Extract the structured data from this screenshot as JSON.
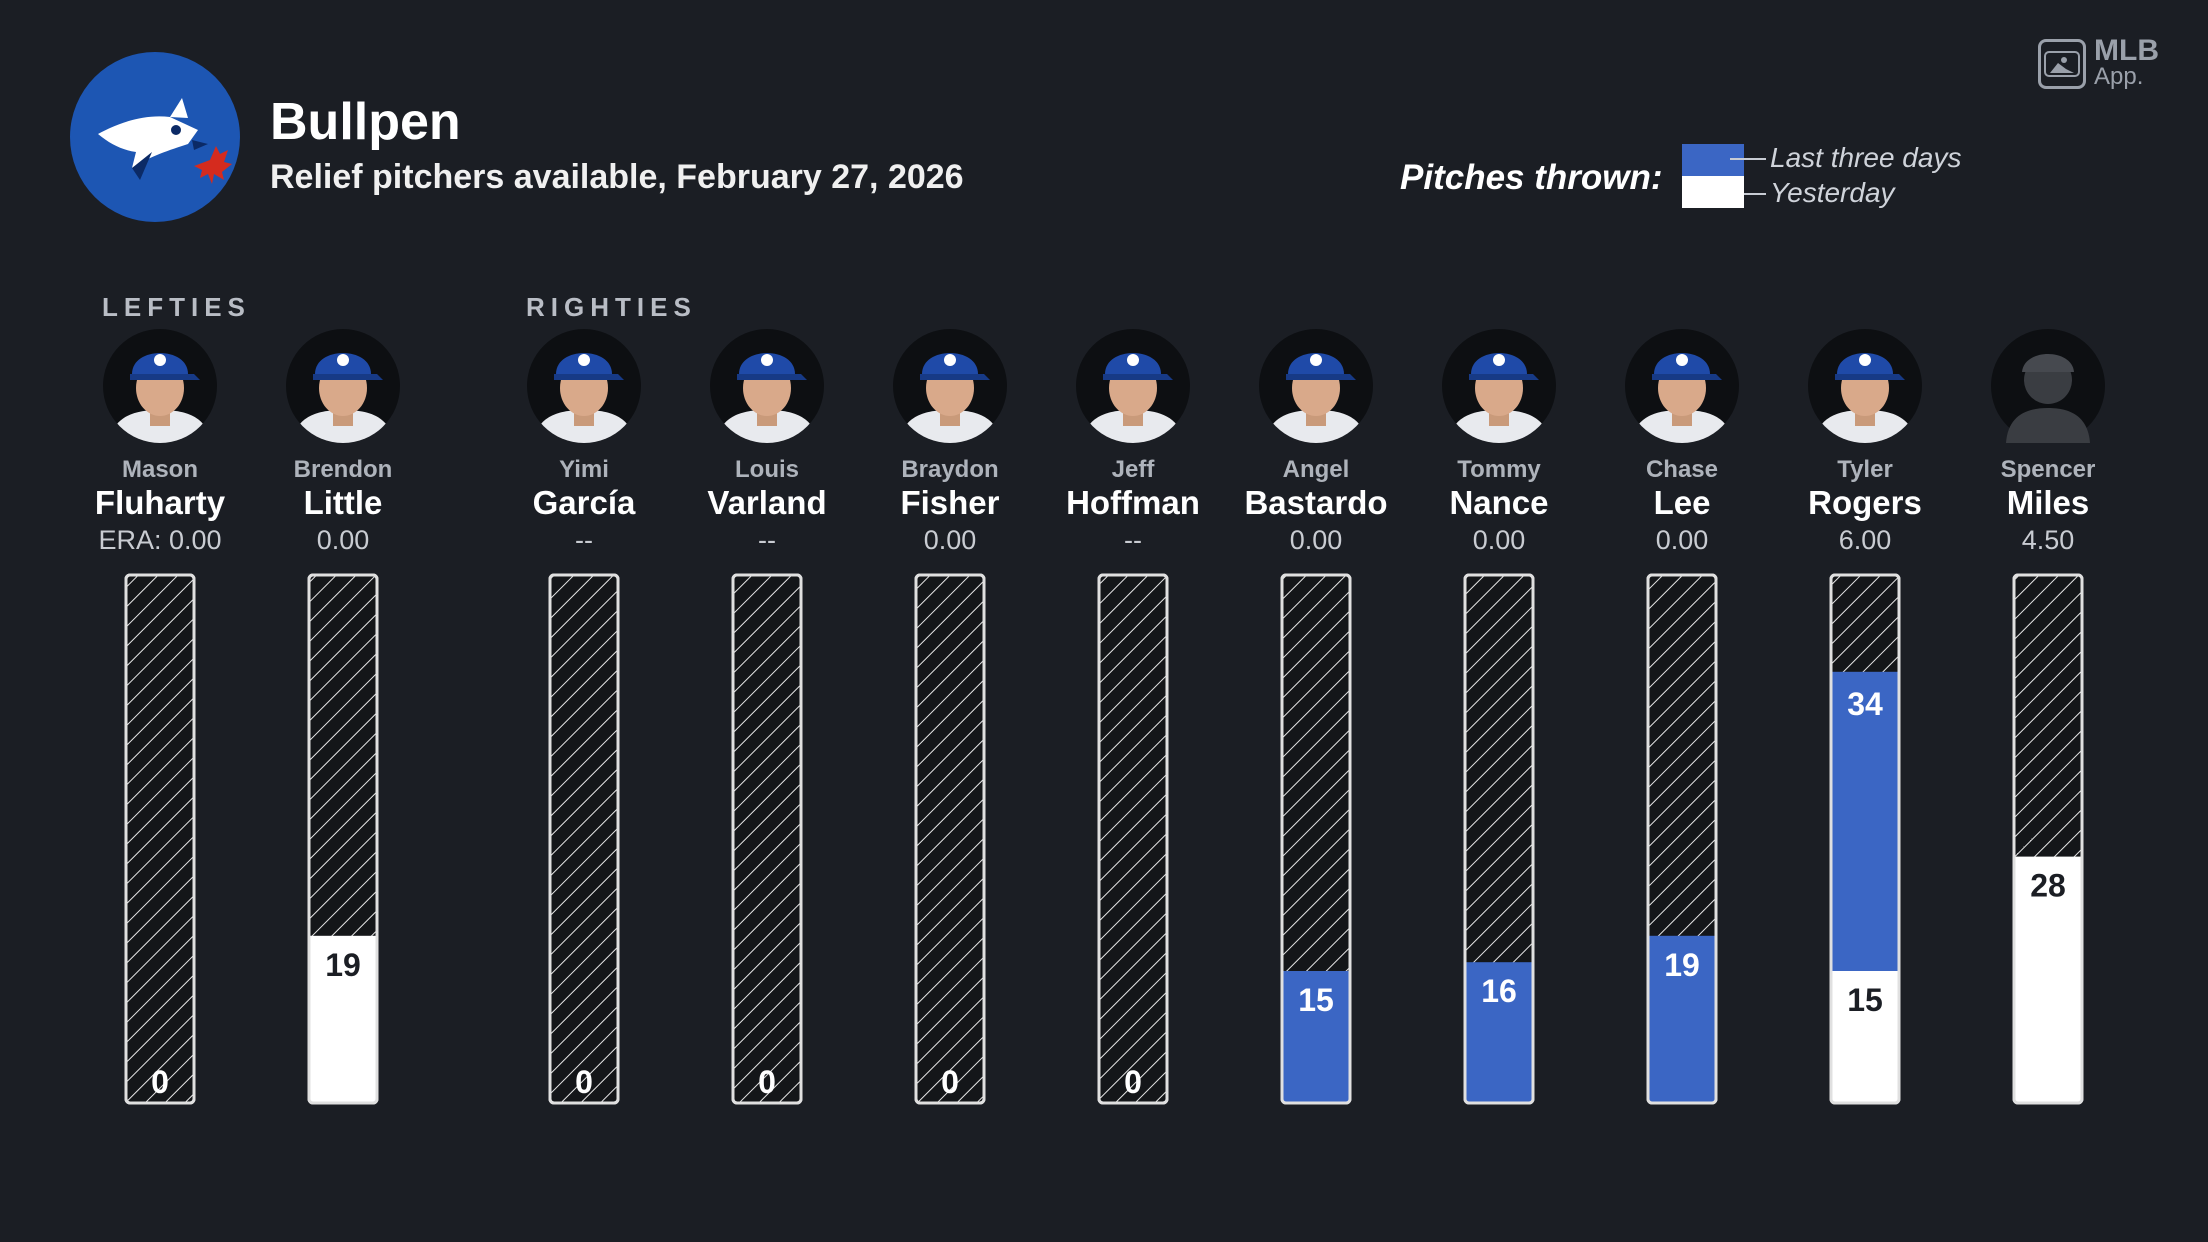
{
  "header": {
    "title": "Bullpen",
    "subtitle": "Relief pitchers available, February 27, 2026"
  },
  "brand": {
    "line1": "MLB",
    "line2": "App."
  },
  "legend": {
    "label": "Pitches thrown:",
    "last_three_days": "Last three days",
    "yesterday": "Yesterday"
  },
  "sections": {
    "lefties": "LEFTIES",
    "righties": "RIGHTIES"
  },
  "colors": {
    "background": "#1b1e24",
    "last_three_days": "#3b66c4",
    "yesterday": "#ffffff",
    "team_blue": "#1d56b3"
  },
  "chart_data": {
    "type": "bar",
    "title": "Bullpen",
    "ylim": [
      0,
      60
    ],
    "series": [
      {
        "name": "Yesterday",
        "values": [
          0,
          19,
          0,
          0,
          0,
          0,
          0,
          0,
          0,
          15,
          28
        ]
      },
      {
        "name": "Last three days",
        "values": [
          0,
          0,
          0,
          0,
          0,
          0,
          15,
          16,
          19,
          34,
          0
        ]
      }
    ],
    "players": [
      {
        "first": "Mason",
        "last": "Fluharty",
        "era": "ERA: 0.00",
        "group": "lefty",
        "photo": "player-photo",
        "labels": [
          "0"
        ]
      },
      {
        "first": "Brendon",
        "last": "Little",
        "era": "0.00",
        "group": "lefty",
        "photo": "player-photo",
        "labels": [
          "19"
        ]
      },
      {
        "first": "Yimi",
        "last": "García",
        "era": "--",
        "group": "righty",
        "photo": "player-photo",
        "labels": [
          "0"
        ]
      },
      {
        "first": "Louis",
        "last": "Varland",
        "era": "--",
        "group": "righty",
        "photo": "player-photo",
        "labels": [
          "0"
        ]
      },
      {
        "first": "Braydon",
        "last": "Fisher",
        "era": "0.00",
        "group": "righty",
        "photo": "player-photo",
        "labels": [
          "0"
        ]
      },
      {
        "first": "Jeff",
        "last": "Hoffman",
        "era": "--",
        "group": "righty",
        "photo": "player-photo",
        "labels": [
          "0"
        ]
      },
      {
        "first": "Angel",
        "last": "Bastardo",
        "era": "0.00",
        "group": "righty",
        "photo": "player-photo",
        "labels": [
          "15"
        ]
      },
      {
        "first": "Tommy",
        "last": "Nance",
        "era": "0.00",
        "group": "righty",
        "photo": "player-photo",
        "labels": [
          "16"
        ]
      },
      {
        "first": "Chase",
        "last": "Lee",
        "era": "0.00",
        "group": "righty",
        "photo": "player-photo",
        "labels": [
          "19"
        ]
      },
      {
        "first": "Tyler",
        "last": "Rogers",
        "era": "6.00",
        "group": "righty",
        "photo": "player-photo",
        "labels": [
          "34",
          "15"
        ]
      },
      {
        "first": "Spencer",
        "last": "Miles",
        "era": "4.50",
        "group": "righty",
        "photo": "silhouette",
        "labels": [
          "28"
        ]
      }
    ]
  }
}
